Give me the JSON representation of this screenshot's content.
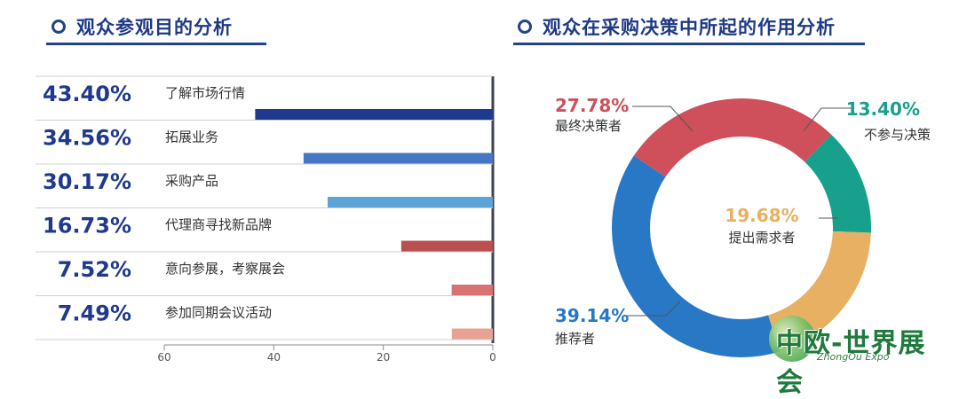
{
  "left_panel": {
    "title": "观众参观目的分析"
  },
  "right_panel": {
    "title": "观众在采购决策中所起的作用分析"
  },
  "logo": {
    "brand": "中欧-世界展会",
    "sub": "ZhongOu Expo"
  },
  "chart_data": [
    {
      "type": "bar",
      "orientation": "horizontal",
      "direction": "right-to-left",
      "categories": [
        "了解市场行情",
        "拓展业务",
        "采购产品",
        "代理商寻找新品牌",
        "意向参展，考察展会",
        "参加同期会议活动"
      ],
      "values": [
        43.4,
        34.56,
        30.17,
        16.73,
        7.52,
        7.49
      ],
      "value_labels": [
        "43.40%",
        "34.56%",
        "30.17%",
        "16.73%",
        "7.52%",
        "7.49%"
      ],
      "colors": [
        "#1f3a8c",
        "#4677c4",
        "#5ca3d8",
        "#b85050",
        "#d97373",
        "#e8a294"
      ],
      "xlim": [
        0,
        60
      ],
      "xticks": [
        "60",
        "40",
        "20",
        "0"
      ],
      "xtick_values": [
        60,
        40,
        20,
        0
      ]
    },
    {
      "type": "pie",
      "style": "donut",
      "slices": [
        {
          "label": "最终决策者",
          "value": 27.78,
          "value_label": "27.78%",
          "color": "#cf4f5a"
        },
        {
          "label": "不参与决策",
          "value": 13.4,
          "value_label": "13.40%",
          "color": "#17a08c"
        },
        {
          "label": "提出需求者",
          "value": 19.68,
          "value_label": "19.68%",
          "color": "#e8b062"
        },
        {
          "label": "推荐者",
          "value": 39.14,
          "value_label": "39.14%",
          "color": "#2878c6"
        }
      ]
    }
  ]
}
